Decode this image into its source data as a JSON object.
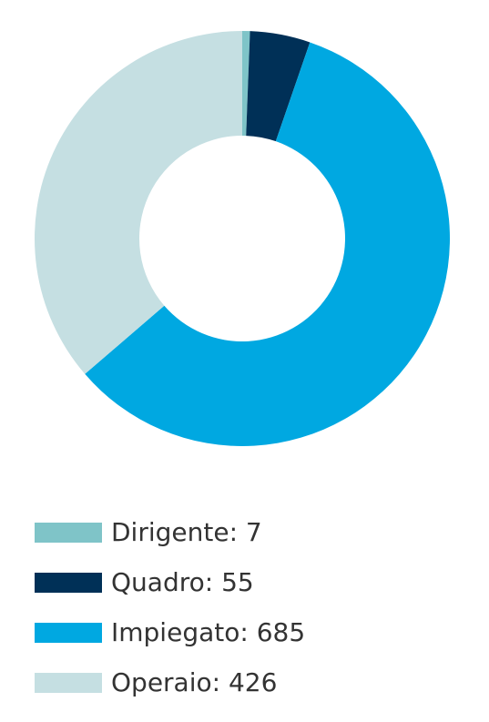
{
  "chart_data": {
    "type": "donut",
    "values": [
      7,
      55,
      685,
      426
    ],
    "value_labels": [
      "Dirigente: 7",
      "Quadro: 55",
      "Impiegato: 685",
      "Operaio: 426"
    ],
    "colors": [
      "#7fc4c8",
      "#003057",
      "#00a8e1",
      "#c5dfe2"
    ]
  }
}
